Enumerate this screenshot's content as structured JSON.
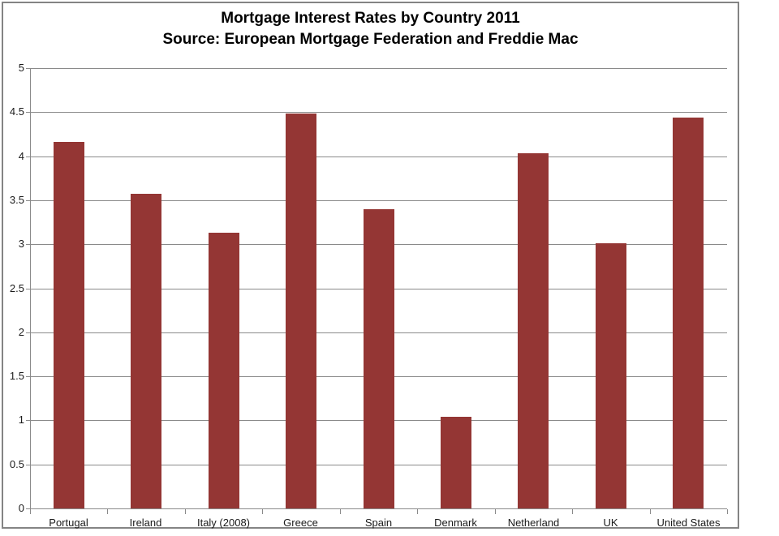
{
  "chart_data": {
    "type": "bar",
    "title": "Mortgage Interest Rates by Country 2011",
    "subtitle": "Source: European Mortgage Federation and Freddie Mac",
    "categories": [
      "Portugal",
      "Ireland",
      "Italy (2008)",
      "Greece",
      "Spain",
      "Denmark",
      "Netherland",
      "UK",
      "United States"
    ],
    "values": [
      4.16,
      3.57,
      3.13,
      4.48,
      3.4,
      1.04,
      4.03,
      3.01,
      4.44
    ],
    "ylim": [
      0,
      5
    ],
    "ytick_step": 0.5,
    "ytick_labels": [
      "0",
      "0.5",
      "1",
      "1.5",
      "2",
      "2.5",
      "3",
      "3.5",
      "4",
      "4.5",
      "5"
    ],
    "xlabel": "",
    "ylabel": "",
    "grid": "horizontal",
    "legend": "none",
    "colors": {
      "bar_fill": "#943634",
      "gridline": "#8A8A8A",
      "axis": "#8A8A8A",
      "frame_border": "#848484",
      "title_text": "#000000",
      "label_text": "#1A1A1A",
      "background": "#FFFFFF"
    }
  }
}
